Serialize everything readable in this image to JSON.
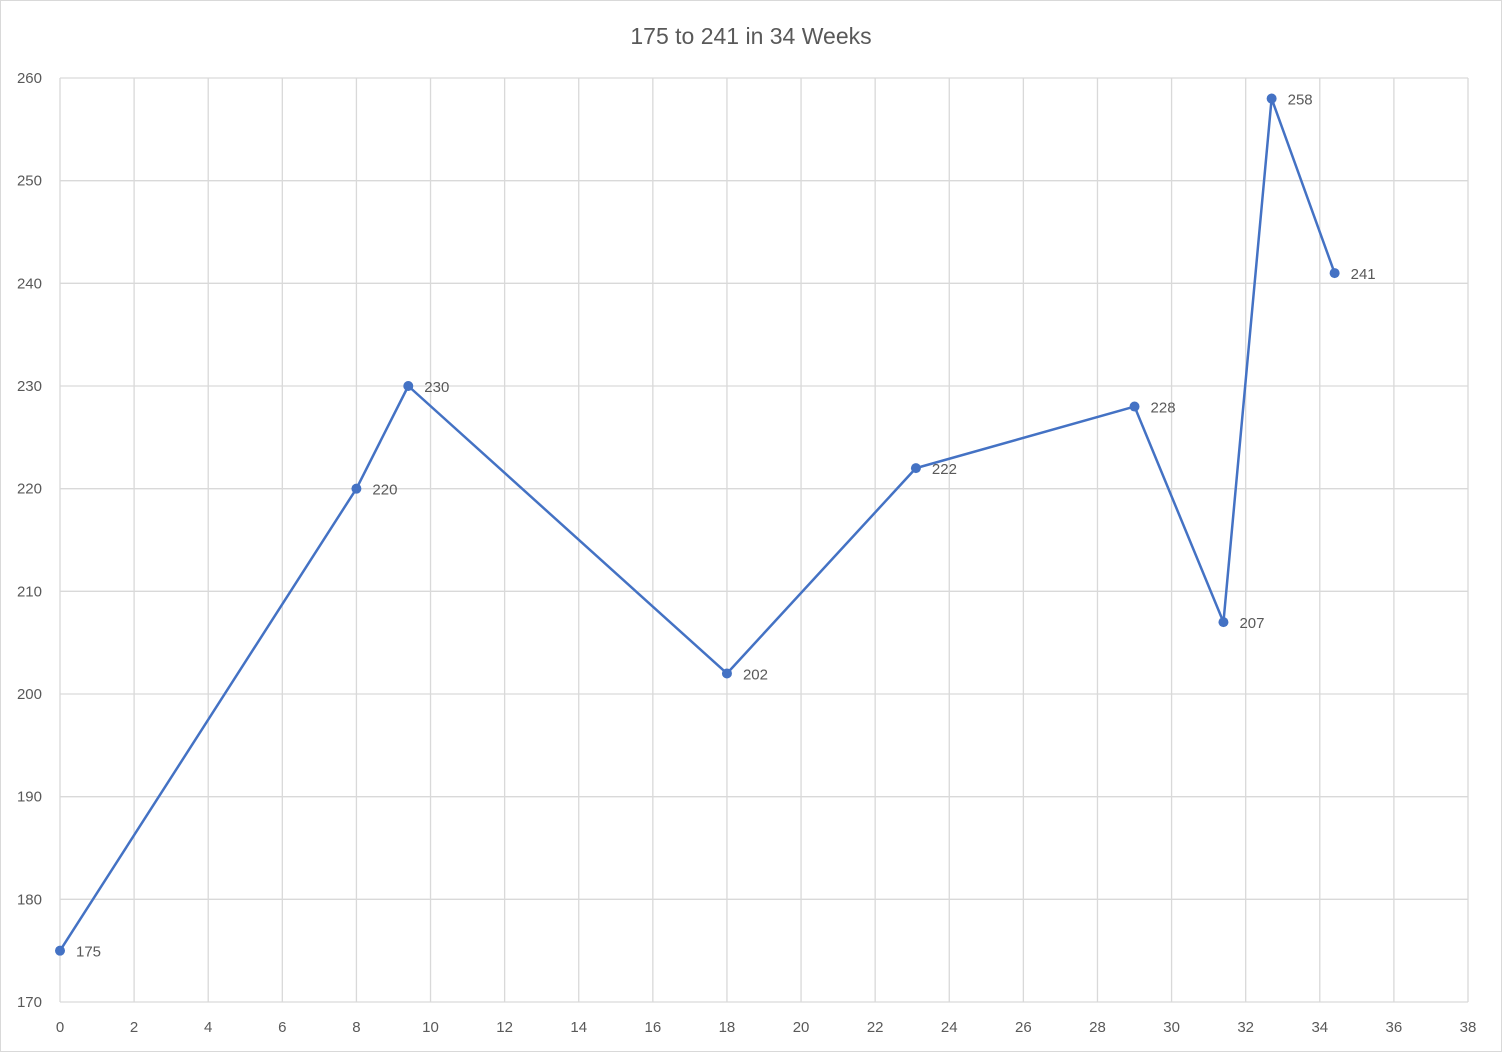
{
  "chart_data": {
    "type": "scatter",
    "title": "175 to 241 in 34 Weeks",
    "xlabel": "",
    "ylabel": "",
    "xlim": [
      0,
      38
    ],
    "ylim": [
      170,
      260
    ],
    "x_ticks": [
      0,
      2,
      4,
      6,
      8,
      10,
      12,
      14,
      16,
      18,
      20,
      22,
      24,
      26,
      28,
      30,
      32,
      34,
      36,
      38
    ],
    "y_ticks": [
      170,
      180,
      190,
      200,
      210,
      220,
      230,
      240,
      250,
      260
    ],
    "grid": true,
    "legend": "none",
    "line_color": "#4472c4",
    "series": [
      {
        "x": [
          0,
          8,
          9.4,
          18,
          23.1,
          29,
          31.4,
          32.7,
          34.4
        ],
        "y": [
          175,
          220,
          230,
          202,
          222,
          228,
          207,
          258,
          241
        ],
        "labels": [
          "175",
          "220",
          "230",
          "202",
          "222",
          "228",
          "207",
          "258",
          "241"
        ]
      }
    ]
  }
}
